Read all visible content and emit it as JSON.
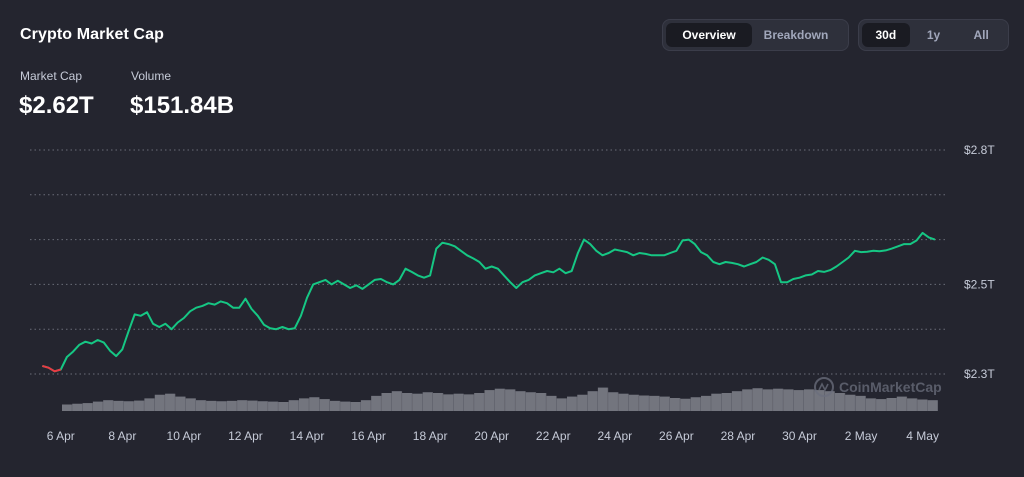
{
  "header": {
    "title": "Crypto Market Cap",
    "view_tabs": [
      "Overview",
      "Breakdown"
    ],
    "range_tabs": [
      "30d",
      "1y",
      "All"
    ]
  },
  "stats": {
    "market_cap_label": "Market Cap",
    "market_cap_value": "$2.62T",
    "volume_label": "Volume",
    "volume_value": "$151.84B"
  },
  "watermark": "CoinMarketCap",
  "colors": {
    "background": "#24252f",
    "line_up": "#16c784",
    "line_down": "#ea3943",
    "volume": "#8a8d96"
  },
  "chart_data": {
    "type": "line",
    "ylim": [
      2.27,
      2.8
    ],
    "y_ticks": [
      {
        "value": 2.8,
        "label": "$2.8T"
      },
      {
        "value": 2.5,
        "label": "$2.5T"
      },
      {
        "value": 2.3,
        "label": "$2.3T"
      }
    ],
    "y_gridlines": [
      2.8,
      2.7,
      2.6,
      2.5,
      2.4,
      2.3
    ],
    "x_ticks": [
      "6 Apr",
      "8 Apr",
      "10 Apr",
      "12 Apr",
      "14 Apr",
      "16 Apr",
      "18 Apr",
      "20 Apr",
      "22 Apr",
      "24 Apr",
      "26 Apr",
      "28 Apr",
      "30 Apr",
      "2 May",
      "4 May"
    ],
    "x_tick_days": [
      1,
      3,
      5,
      7,
      9,
      11,
      13,
      15,
      17,
      19,
      21,
      23,
      25,
      27,
      29
    ],
    "x_range_days": [
      0,
      29.5
    ],
    "series": [
      {
        "kind": "market_cap",
        "points": [
          [
            0.0,
            2.315
          ],
          [
            0.2,
            2.322
          ],
          [
            0.4,
            2.318
          ],
          [
            0.6,
            2.314
          ],
          [
            0.8,
            2.306
          ],
          [
            1.0,
            2.31
          ],
          [
            1.2,
            2.338
          ],
          [
            1.4,
            2.35
          ],
          [
            1.6,
            2.365
          ],
          [
            1.8,
            2.372
          ],
          [
            2.0,
            2.368
          ],
          [
            2.2,
            2.376
          ],
          [
            2.4,
            2.37
          ],
          [
            2.6,
            2.352
          ],
          [
            2.8,
            2.34
          ],
          [
            3.0,
            2.355
          ],
          [
            3.2,
            2.395
          ],
          [
            3.4,
            2.433
          ],
          [
            3.6,
            2.43
          ],
          [
            3.8,
            2.438
          ],
          [
            4.0,
            2.412
          ],
          [
            4.2,
            2.405
          ],
          [
            4.4,
            2.412
          ],
          [
            4.6,
            2.4
          ],
          [
            4.8,
            2.415
          ],
          [
            5.0,
            2.425
          ],
          [
            5.2,
            2.44
          ],
          [
            5.4,
            2.448
          ],
          [
            5.6,
            2.452
          ],
          [
            5.8,
            2.458
          ],
          [
            6.0,
            2.455
          ],
          [
            6.2,
            2.462
          ],
          [
            6.4,
            2.458
          ],
          [
            6.6,
            2.448
          ],
          [
            6.8,
            2.448
          ],
          [
            7.0,
            2.468
          ],
          [
            7.2,
            2.445
          ],
          [
            7.4,
            2.43
          ],
          [
            7.6,
            2.41
          ],
          [
            7.8,
            2.402
          ],
          [
            8.0,
            2.4
          ],
          [
            8.2,
            2.405
          ],
          [
            8.4,
            2.4
          ],
          [
            8.6,
            2.402
          ],
          [
            8.8,
            2.43
          ],
          [
            9.0,
            2.47
          ],
          [
            9.2,
            2.5
          ],
          [
            9.4,
            2.505
          ],
          [
            9.6,
            2.51
          ],
          [
            9.8,
            2.5
          ],
          [
            10.0,
            2.508
          ],
          [
            10.2,
            2.5
          ],
          [
            10.4,
            2.492
          ],
          [
            10.6,
            2.498
          ],
          [
            10.8,
            2.49
          ],
          [
            11.0,
            2.5
          ],
          [
            11.2,
            2.51
          ],
          [
            11.4,
            2.512
          ],
          [
            11.6,
            2.505
          ],
          [
            11.8,
            2.5
          ],
          [
            12.0,
            2.51
          ],
          [
            12.2,
            2.535
          ],
          [
            12.4,
            2.528
          ],
          [
            12.6,
            2.52
          ],
          [
            12.8,
            2.515
          ],
          [
            13.0,
            2.52
          ],
          [
            13.2,
            2.58
          ],
          [
            13.4,
            2.593
          ],
          [
            13.6,
            2.59
          ],
          [
            13.8,
            2.585
          ],
          [
            14.0,
            2.575
          ],
          [
            14.2,
            2.565
          ],
          [
            14.4,
            2.558
          ],
          [
            14.6,
            2.55
          ],
          [
            14.8,
            2.535
          ],
          [
            15.0,
            2.54
          ],
          [
            15.2,
            2.535
          ],
          [
            15.4,
            2.52
          ],
          [
            15.6,
            2.505
          ],
          [
            15.8,
            2.492
          ],
          [
            16.0,
            2.505
          ],
          [
            16.2,
            2.51
          ],
          [
            16.4,
            2.52
          ],
          [
            16.6,
            2.525
          ],
          [
            16.8,
            2.53
          ],
          [
            17.0,
            2.527
          ],
          [
            17.2,
            2.535
          ],
          [
            17.4,
            2.525
          ],
          [
            17.6,
            2.53
          ],
          [
            17.8,
            2.57
          ],
          [
            18.0,
            2.6
          ],
          [
            18.2,
            2.59
          ],
          [
            18.4,
            2.575
          ],
          [
            18.6,
            2.565
          ],
          [
            18.8,
            2.57
          ],
          [
            19.0,
            2.578
          ],
          [
            19.2,
            2.575
          ],
          [
            19.4,
            2.572
          ],
          [
            19.6,
            2.565
          ],
          [
            19.8,
            2.57
          ],
          [
            20.0,
            2.568
          ],
          [
            20.2,
            2.565
          ],
          [
            20.4,
            2.565
          ],
          [
            20.6,
            2.565
          ],
          [
            20.8,
            2.57
          ],
          [
            21.0,
            2.575
          ],
          [
            21.2,
            2.598
          ],
          [
            21.4,
            2.6
          ],
          [
            21.6,
            2.59
          ],
          [
            21.8,
            2.572
          ],
          [
            22.0,
            2.565
          ],
          [
            22.2,
            2.55
          ],
          [
            22.4,
            2.545
          ],
          [
            22.6,
            2.55
          ],
          [
            22.8,
            2.548
          ],
          [
            23.0,
            2.545
          ],
          [
            23.2,
            2.54
          ],
          [
            23.4,
            2.545
          ],
          [
            23.6,
            2.55
          ],
          [
            23.8,
            2.56
          ],
          [
            24.0,
            2.555
          ],
          [
            24.2,
            2.545
          ],
          [
            24.4,
            2.505
          ],
          [
            24.6,
            2.505
          ],
          [
            24.8,
            2.512
          ],
          [
            25.0,
            2.515
          ],
          [
            25.2,
            2.52
          ],
          [
            25.4,
            2.522
          ],
          [
            25.6,
            2.53
          ],
          [
            25.8,
            2.528
          ],
          [
            26.0,
            2.532
          ],
          [
            26.2,
            2.54
          ],
          [
            26.4,
            2.55
          ],
          [
            26.6,
            2.56
          ],
          [
            26.8,
            2.575
          ],
          [
            27.0,
            2.572
          ],
          [
            27.2,
            2.573
          ],
          [
            27.4,
            2.575
          ],
          [
            27.6,
            2.574
          ],
          [
            27.8,
            2.576
          ],
          [
            28.0,
            2.58
          ],
          [
            28.2,
            2.585
          ],
          [
            28.4,
            2.59
          ],
          [
            28.6,
            2.59
          ],
          [
            28.8,
            2.598
          ],
          [
            29.0,
            2.615
          ],
          [
            29.2,
            2.605
          ],
          [
            29.4,
            2.6
          ]
        ],
        "down_segment_until_day": 1.0
      },
      {
        "kind": "volume",
        "values": [
          0.18,
          0.2,
          0.22,
          0.26,
          0.3,
          0.28,
          0.27,
          0.29,
          0.35,
          0.45,
          0.48,
          0.4,
          0.35,
          0.3,
          0.28,
          0.27,
          0.28,
          0.3,
          0.29,
          0.27,
          0.26,
          0.25,
          0.3,
          0.35,
          0.38,
          0.33,
          0.28,
          0.26,
          0.25,
          0.3,
          0.42,
          0.5,
          0.55,
          0.5,
          0.48,
          0.52,
          0.5,
          0.46,
          0.48,
          0.46,
          0.5,
          0.58,
          0.62,
          0.6,
          0.55,
          0.52,
          0.5,
          0.42,
          0.35,
          0.4,
          0.45,
          0.55,
          0.65,
          0.52,
          0.48,
          0.45,
          0.43,
          0.42,
          0.4,
          0.36,
          0.34,
          0.38,
          0.42,
          0.48,
          0.5,
          0.55,
          0.6,
          0.63,
          0.6,
          0.62,
          0.6,
          0.58,
          0.6,
          0.58,
          0.55,
          0.5,
          0.45,
          0.42,
          0.35,
          0.33,
          0.36,
          0.4,
          0.35,
          0.32,
          0.3
        ]
      }
    ]
  }
}
